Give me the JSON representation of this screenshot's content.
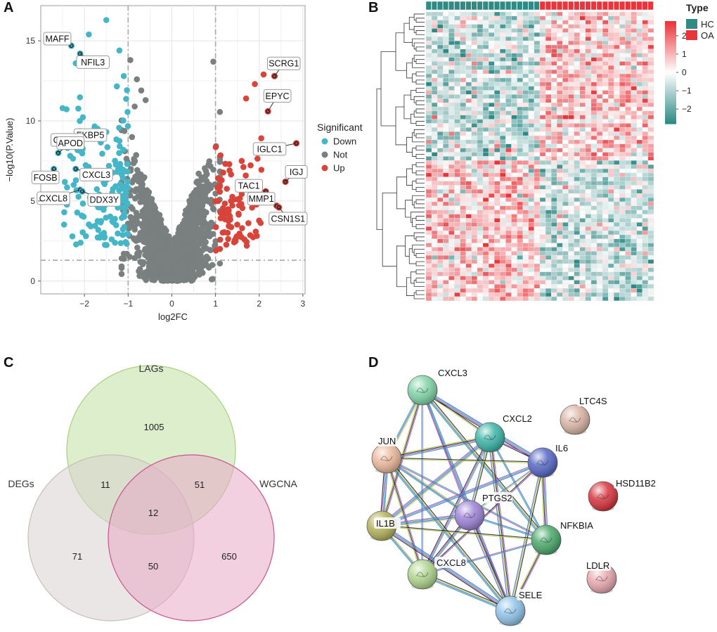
{
  "panels": {
    "a": {
      "label": "A"
    },
    "b": {
      "label": "B"
    },
    "c": {
      "label": "C"
    },
    "d": {
      "label": "D"
    }
  },
  "volcano": {
    "xlabel": "log2FC",
    "ylabel": "−log10(P.Value)",
    "xticks": [
      "−2",
      "−1",
      "0",
      "1",
      "2",
      "3"
    ],
    "yticks": [
      "0",
      "5",
      "10",
      "15"
    ],
    "legend_title": "Significant",
    "legend": [
      {
        "name": "Down",
        "color": "#45b6c8"
      },
      {
        "name": "Not",
        "color": "#7a7f7f"
      },
      {
        "name": "Up",
        "color": "#d8443a"
      }
    ],
    "genes": [
      "MAFF",
      "NFIL3",
      "FKBP5",
      "CXCL2",
      "APOD",
      "FOSB",
      "CXCL3",
      "CXCL8",
      "DDX3Y",
      "SCRG1",
      "EPYC",
      "IGLC1",
      "IGJ",
      "TAC1",
      "MMP1",
      "CSN1S1"
    ]
  },
  "chart_data": [
    {
      "type": "scatter",
      "xlabel": "log2FC",
      "ylabel": "−log10(P.Value)",
      "xlim": [
        -3,
        3.05
      ],
      "ylim": [
        -0.8,
        17.2
      ],
      "thresholds": {
        "logFC": [
          -1,
          1
        ],
        "neglog10p": 1.3
      },
      "labeled_points": [
        {
          "gene": "MAFF",
          "x": -2.3,
          "y": 14.7,
          "group": "Down"
        },
        {
          "gene": "NFIL3",
          "x": -2.1,
          "y": 14.2,
          "group": "Down"
        },
        {
          "gene": "FKBP5",
          "x": -2.4,
          "y": 8.5,
          "group": "Down"
        },
        {
          "gene": "CXCL2",
          "x": -2.2,
          "y": 8.9,
          "group": "Down"
        },
        {
          "gene": "APOD",
          "x": -2.6,
          "y": 8.0,
          "group": "Down"
        },
        {
          "gene": "FOSB",
          "x": -2.7,
          "y": 7.0,
          "group": "Down"
        },
        {
          "gene": "CXCL3",
          "x": -2.2,
          "y": 7.0,
          "group": "Down"
        },
        {
          "gene": "CXCL8",
          "x": -2.1,
          "y": 5.7,
          "group": "Down"
        },
        {
          "gene": "DDX3Y",
          "x": -2.05,
          "y": 5.6,
          "group": "Down"
        },
        {
          "gene": "SCRG1",
          "x": 2.35,
          "y": 12.8,
          "group": "Up"
        },
        {
          "gene": "EPYC",
          "x": 2.2,
          "y": 10.6,
          "group": "Up"
        },
        {
          "gene": "IGLC1",
          "x": 2.85,
          "y": 8.6,
          "group": "Up"
        },
        {
          "gene": "IGJ",
          "x": 2.6,
          "y": 6.2,
          "group": "Up"
        },
        {
          "gene": "TAC1",
          "x": 2.15,
          "y": 5.6,
          "group": "Up"
        },
        {
          "gene": "MMP1",
          "x": 2.4,
          "y": 4.7,
          "group": "Up"
        },
        {
          "gene": "CSN1S1",
          "x": 2.45,
          "y": 4.6,
          "group": "Up"
        }
      ]
    },
    {
      "type": "heatmap",
      "legend_title": "Type",
      "groups": [
        {
          "name": "HC",
          "color": "#2f8a86"
        },
        {
          "name": "OA",
          "color": "#e8343a"
        }
      ],
      "scale": {
        "ticks": [
          "2",
          "1",
          "0",
          "−1",
          "−2"
        ],
        "min": -2.8,
        "max": 2.8
      },
      "columns": {
        "HC": 20,
        "OA": 20
      },
      "rows": 70
    }
  ],
  "venn": {
    "sets": [
      {
        "name": "LAGs",
        "color": "#bfe0a0"
      },
      {
        "name": "DEGs",
        "color": "#d9d2d0"
      },
      {
        "name": "WGCNA",
        "color": "#e8a9c7"
      }
    ],
    "regions": {
      "lags_only": "1005",
      "degs_lags": "11",
      "lags_wgcna": "51",
      "all": "12",
      "degs_only": "71",
      "degs_wgcna": "50",
      "wgcna_only": "650"
    }
  },
  "ppi": {
    "nodes": [
      {
        "id": "CXCL3",
        "color": "#7fd3a6"
      },
      {
        "id": "CXCL2",
        "color": "#3bb4a6"
      },
      {
        "id": "JUN",
        "color": "#ebb79b"
      },
      {
        "id": "IL6",
        "color": "#5566c4"
      },
      {
        "id": "PTGS2",
        "color": "#9c82d6"
      },
      {
        "id": "IL1B",
        "color": "#b4b25a"
      },
      {
        "id": "NFKBIA",
        "color": "#49a86a"
      },
      {
        "id": "CXCL8",
        "color": "#aed48d"
      },
      {
        "id": "SELE",
        "color": "#8ec3e8"
      },
      {
        "id": "LTC4S",
        "color": "#d9b4a4"
      },
      {
        "id": "HSD11B2",
        "color": "#d7333d"
      },
      {
        "id": "LDLR",
        "color": "#e6a8ad"
      }
    ]
  }
}
